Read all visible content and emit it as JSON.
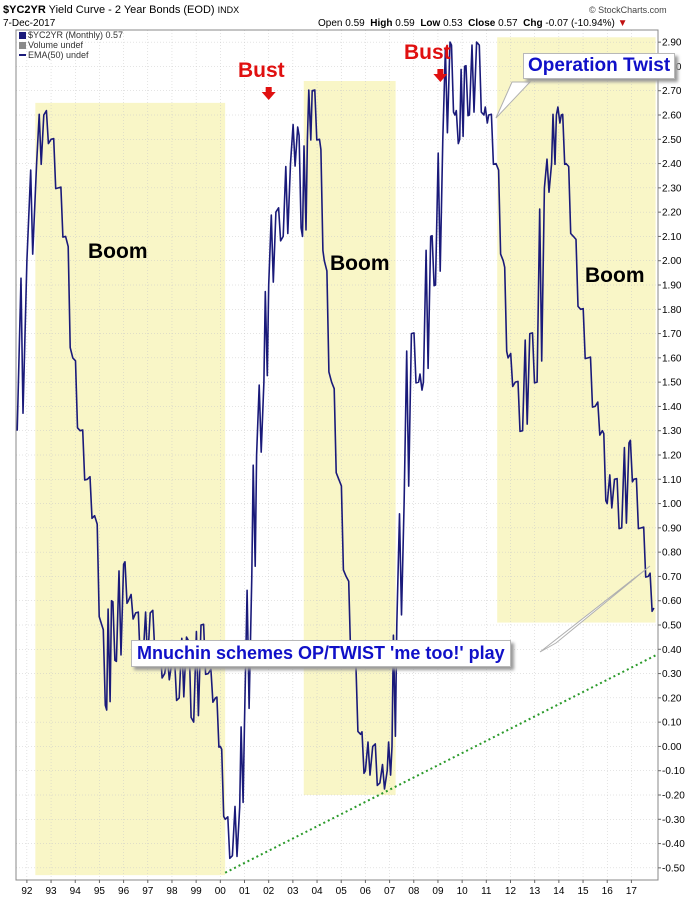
{
  "header": {
    "symbol": "$YC2YR",
    "name": "Yield Curve - 2 Year Bonds (EOD)",
    "exchange": "INDX",
    "date": "7-Dec-2017",
    "open_label": "Open",
    "open": "0.59",
    "high_label": "High",
    "high": "0.59",
    "low_label": "Low",
    "low": "0.53",
    "close_label": "Close",
    "close": "0.57",
    "chg_label": "Chg",
    "chg": "-0.07 (-10.94%)",
    "watermark": "© StockCharts.com"
  },
  "legend": [
    {
      "text": "$YC2YR (Monthly) 0.57",
      "color": "#1a1a7a"
    },
    {
      "text": "Volume undef",
      "color": "#8a8a8a"
    },
    {
      "text": "EMA(50) undef",
      "color": "#1a1a7a"
    }
  ],
  "annotations": {
    "boom1": "Boom",
    "boom2": "Boom",
    "boom3": "Boom",
    "bust1": "Bust",
    "bust2": "Bust",
    "operation_twist": "Operation Twist",
    "mnuchin": "Mnuchin schemes OP/TWIST 'me too!' play"
  },
  "colors": {
    "series": "#1a1a7a",
    "shade": "#f9f6c7",
    "bust": "#e01010",
    "callout_text": "#1010c8",
    "trendline": "#2a9a2a",
    "grid": "#c8c8c8"
  },
  "chart_data": {
    "type": "line",
    "title": "$YC2YR (Monthly)",
    "x_ticks": [
      "92",
      "93",
      "94",
      "95",
      "96",
      "97",
      "98",
      "99",
      "00",
      "01",
      "02",
      "03",
      "04",
      "05",
      "06",
      "07",
      "08",
      "09",
      "10",
      "11",
      "12",
      "13",
      "14",
      "15",
      "16",
      "17"
    ],
    "x_range": [
      1991.55,
      2018.1
    ],
    "y_ticks": [
      "2.90",
      "2.80",
      "2.70",
      "2.60",
      "2.50",
      "2.40",
      "2.30",
      "2.20",
      "2.10",
      "2.00",
      "1.90",
      "1.80",
      "1.70",
      "1.60",
      "1.50",
      "1.40",
      "1.30",
      "1.20",
      "1.10",
      "1.00",
      "0.90",
      "0.80",
      "0.70",
      "0.60",
      "0.50",
      "0.40",
      "0.30",
      "0.20",
      "0.10",
      "0.00",
      "-0.10",
      "-0.20",
      "-0.30",
      "-0.40",
      "-0.50"
    ],
    "ylim": [
      -0.55,
      2.95
    ],
    "grid": true,
    "series": [
      {
        "x": [
          1991.6,
          1992.0,
          1992.4,
          1992.7,
          1993.0,
          1993.3,
          1993.6,
          1993.9,
          1994.2,
          1994.5,
          1994.8,
          1995.1,
          1995.3,
          1995.5,
          1995.7,
          1996.0,
          1996.2,
          1996.5,
          1996.8,
          1997.1,
          1997.4,
          1997.7,
          1998.0,
          1998.3,
          1998.6,
          1998.9,
          1999.2,
          1999.5,
          1999.8,
          2000.0,
          2000.2,
          2000.5,
          2000.8,
          2001.0,
          2001.3,
          2001.5,
          2001.8,
          2002.0,
          2002.3,
          2002.6,
          2002.9,
          2003.2,
          2003.4,
          2003.6,
          2003.8,
          2004.1,
          2004.3,
          2004.6,
          2004.9,
          2005.2,
          2005.5,
          2005.8,
          2006.0,
          2006.3,
          2006.6,
          2006.9,
          2007.1,
          2007.3,
          2007.6,
          2007.9,
          2008.2,
          2008.4,
          2008.7,
          2008.9,
          2009.2,
          2009.5,
          2009.7,
          2009.9,
          2010.1,
          2010.3,
          2010.6,
          2010.9,
          2011.1,
          2011.4,
          2011.7,
          2011.9,
          2012.2,
          2012.5,
          2012.8,
          2013.1,
          2013.4,
          2013.7,
          2013.9,
          2014.1,
          2014.3,
          2014.6,
          2014.9,
          2015.2,
          2015.5,
          2015.8,
          2016.0,
          2016.3,
          2016.6,
          2016.9,
          2017.1,
          2017.4,
          2017.7,
          2017.93
        ],
        "y": [
          1.3,
          2.0,
          2.4,
          2.6,
          2.5,
          2.3,
          2.1,
          1.6,
          1.3,
          1.1,
          0.95,
          0.5,
          0.15,
          0.6,
          0.35,
          0.75,
          0.6,
          0.55,
          0.35,
          0.55,
          0.4,
          0.3,
          0.35,
          0.2,
          0.45,
          0.1,
          0.5,
          0.3,
          0.2,
          0.0,
          -0.3,
          -0.45,
          -0.25,
          0.1,
          0.7,
          1.2,
          1.5,
          1.9,
          2.2,
          2.1,
          2.4,
          2.55,
          2.1,
          2.5,
          2.7,
          2.5,
          2.0,
          1.5,
          1.1,
          0.7,
          0.35,
          0.05,
          -0.1,
          0.0,
          -0.15,
          -0.1,
          0.0,
          0.5,
          1.0,
          1.7,
          1.5,
          1.5,
          2.1,
          1.9,
          2.5,
          2.9,
          2.6,
          2.5,
          2.8,
          2.6,
          2.9,
          2.6,
          2.6,
          2.4,
          2.0,
          1.6,
          1.5,
          1.3,
          1.7,
          1.5,
          2.3,
          2.4,
          2.6,
          2.6,
          2.4,
          2.1,
          1.8,
          1.6,
          1.4,
          1.3,
          1.0,
          1.1,
          0.9,
          1.25,
          1.1,
          0.9,
          0.7,
          0.57
        ]
      }
    ],
    "shaded_regions": [
      {
        "label": "Boom",
        "x": [
          1992.35,
          2000.2
        ],
        "y": [
          -0.53,
          2.65
        ]
      },
      {
        "label": "Boom",
        "x": [
          2003.45,
          2007.25
        ],
        "y": [
          -0.2,
          2.74
        ]
      },
      {
        "label": "Boom",
        "x": [
          2011.45,
          2018.0
        ],
        "y": [
          0.51,
          2.92
        ]
      }
    ],
    "trendline": {
      "x": [
        2000.2,
        2018.1
      ],
      "y": [
        -0.52,
        0.38
      ],
      "style": "dotted"
    },
    "bust_markers": [
      {
        "label": "Bust",
        "x": 2002.0
      },
      {
        "label": "Bust",
        "x": 2009.1
      }
    ]
  }
}
